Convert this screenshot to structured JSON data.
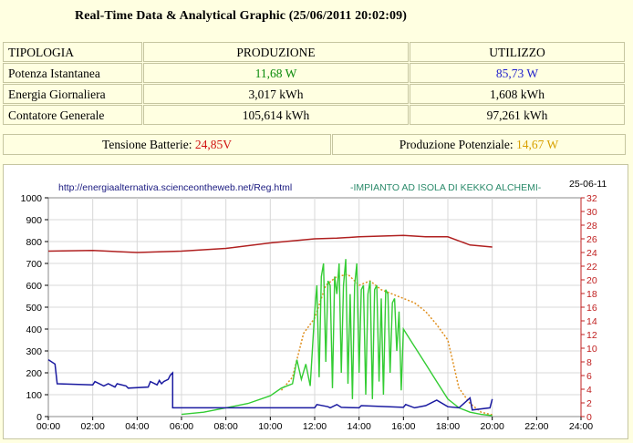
{
  "header": {
    "title": "Real-Time Data & Analytical Graphic (25/06/2011 20:02:09)"
  },
  "table": {
    "headers": [
      "TIPOLOGIA",
      "PRODUZIONE",
      "UTILIZZO"
    ],
    "rows": [
      {
        "label": "Potenza Istantanea",
        "produzione": "11,68 W",
        "utilizzo": "85,73 W"
      },
      {
        "label": "Energia Giornaliera",
        "produzione": "3,017 kWh",
        "utilizzo": "1,608 kWh"
      },
      {
        "label": "Contatore Generale",
        "produzione": "105,614 kWh",
        "utilizzo": "97,261 kWh"
      }
    ]
  },
  "battery": {
    "label": "Tensione Batterie:",
    "value": "24,85V"
  },
  "potential": {
    "label": "Produzione Potenziale:",
    "value": "14,67 W"
  },
  "colors": {
    "production": "#0a8a0a",
    "usage": "#2222cc",
    "battery": "#d01010",
    "potential": "#d8a000"
  },
  "chart_data": {
    "type": "line",
    "url_text": "http://energiaalternativa.scienceontheweb.net/Reg.html",
    "subtitle": "-IMPIANTO AD ISOLA DI KEKKO ALCHEMI-",
    "date": "25-06-11",
    "x_ticks": [
      "00:00",
      "02:00",
      "04:00",
      "06:00",
      "08:00",
      "10:00",
      "12:00",
      "14:00",
      "16:00",
      "18:00",
      "20:00",
      "22:00",
      "24:00"
    ],
    "y_left_ticks": [
      "0",
      "100",
      "200",
      "300",
      "400",
      "500",
      "600",
      "700",
      "800",
      "900",
      "1000"
    ],
    "y_right_ticks": [
      "0",
      "2",
      "4",
      "6",
      "8",
      "10",
      "12",
      "14",
      "16",
      "18",
      "20",
      "22",
      "24",
      "26",
      "28",
      "30",
      "32"
    ],
    "ylim_left": [
      0,
      1000
    ],
    "ylim_right": [
      0,
      32
    ],
    "grid": true,
    "series": [
      {
        "key": "battery",
        "axis": "right",
        "color": "#b02020",
        "x": [
          0,
          2,
          4,
          6,
          8,
          10,
          12,
          13,
          14,
          15,
          16,
          17,
          18,
          18.5,
          19,
          20
        ],
        "y": [
          24.2,
          24.3,
          24.0,
          24.2,
          24.6,
          25.4,
          26.0,
          26.1,
          26.3,
          26.4,
          26.5,
          26.3,
          26.3,
          25.7,
          25.1,
          24.8
        ]
      },
      {
        "key": "usage",
        "axis": "left",
        "color": "#1a1aa0",
        "x": [
          0,
          0.3,
          0.4,
          2.0,
          2.1,
          2.5,
          2.7,
          3.0,
          3.1,
          3.5,
          3.6,
          4.5,
          4.6,
          4.9,
          5.0,
          5.1,
          5.2,
          5.4,
          5.5,
          5.6,
          5.6,
          12.0,
          12.1,
          12.6,
          12.7,
          13.0,
          13.2,
          14.0,
          14.1,
          16.0,
          16.1,
          16.5,
          17.0,
          17.5,
          18.0,
          18.5,
          19.0,
          19.1,
          19.9,
          20.0
        ],
        "y": [
          260,
          240,
          150,
          145,
          160,
          140,
          150,
          135,
          150,
          140,
          130,
          135,
          160,
          145,
          165,
          150,
          160,
          170,
          190,
          200,
          40,
          40,
          55,
          45,
          40,
          55,
          42,
          40,
          50,
          42,
          55,
          40,
          50,
          75,
          45,
          40,
          85,
          30,
          40,
          80
        ]
      },
      {
        "key": "production",
        "axis": "left",
        "color": "#33cc33",
        "x": [
          6.0,
          7.0,
          8.0,
          9.0,
          10.0,
          10.5,
          11.0,
          11.2,
          11.4,
          11.6,
          11.8,
          12.0,
          12.1,
          12.2,
          12.3,
          12.4,
          12.5,
          12.6,
          12.7,
          12.8,
          12.9,
          13.0,
          13.1,
          13.2,
          13.3,
          13.4,
          13.5,
          13.6,
          13.7,
          13.8,
          13.9,
          14.0,
          14.1,
          14.2,
          14.3,
          14.4,
          14.5,
          14.6,
          14.7,
          14.8,
          14.9,
          15.0,
          15.1,
          15.2,
          15.3,
          15.4,
          15.5,
          15.6,
          15.7,
          15.8,
          15.9,
          16.0,
          16.5,
          17.0,
          17.5,
          18.0,
          18.5,
          19.0,
          19.5,
          20.0
        ],
        "y": [
          10,
          20,
          40,
          60,
          95,
          130,
          150,
          260,
          170,
          240,
          140,
          480,
          600,
          180,
          640,
          700,
          250,
          620,
          600,
          130,
          640,
          560,
          700,
          200,
          600,
          720,
          150,
          560,
          80,
          600,
          700,
          200,
          580,
          600,
          100,
          560,
          620,
          80,
          580,
          600,
          160,
          540,
          100,
          580,
          560,
          200,
          520,
          540,
          300,
          480,
          120,
          400,
          320,
          240,
          160,
          80,
          40,
          20,
          10,
          4
        ]
      },
      {
        "key": "potential",
        "axis": "left",
        "color": "#e09020",
        "x": [
          10.5,
          11.0,
          11.5,
          12.0,
          12.5,
          13.0,
          13.5,
          14.0,
          14.5,
          15.0,
          15.5,
          16.0,
          16.5,
          17.0,
          17.5,
          18.0,
          18.5,
          19.0,
          19.5,
          20.0
        ],
        "y": [
          120,
          180,
          380,
          450,
          600,
          640,
          650,
          600,
          620,
          580,
          560,
          540,
          520,
          480,
          420,
          350,
          130,
          60,
          20,
          8
        ]
      }
    ]
  }
}
